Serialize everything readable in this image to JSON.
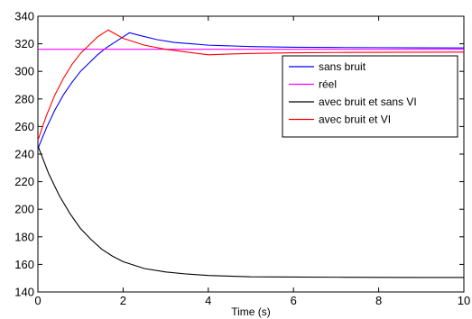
{
  "chart_data": {
    "type": "line",
    "title": "",
    "xlabel": "Time (s)",
    "ylabel": "",
    "xlim": [
      0,
      10
    ],
    "ylim": [
      140,
      340
    ],
    "xticks": [
      0,
      2,
      4,
      6,
      8,
      10
    ],
    "yticks": [
      140,
      160,
      180,
      200,
      220,
      240,
      260,
      280,
      300,
      320,
      340
    ],
    "grid": false,
    "legend_position": "right",
    "series": [
      {
        "name": "sans bruit",
        "color": "#0000ff",
        "x": [
          0,
          0.2,
          0.4,
          0.6,
          0.8,
          1.0,
          1.2,
          1.4,
          1.6,
          1.8,
          2.0,
          2.15,
          2.4,
          2.8,
          3.2,
          3.6,
          4.0,
          5.0,
          6.0,
          7.0,
          8.0,
          9.0,
          10.0
        ],
        "y": [
          244,
          259,
          272,
          283,
          292,
          300,
          306,
          312,
          317,
          321,
          325,
          328,
          326,
          323,
          321,
          320,
          319,
          318,
          317.5,
          317.3,
          317.2,
          317.1,
          317
        ]
      },
      {
        "name": "réel",
        "color": "#ff00ff",
        "x": [
          0,
          10
        ],
        "y": [
          316,
          316
        ]
      },
      {
        "name": "avec bruit et sans VI",
        "color": "#000000",
        "x": [
          0,
          0.25,
          0.5,
          0.75,
          1.0,
          1.25,
          1.5,
          1.75,
          2.0,
          2.5,
          3.0,
          3.5,
          4.0,
          4.5,
          5.0,
          6.0,
          7.0,
          8.0,
          9.0,
          10.0
        ],
        "y": [
          246,
          226,
          210,
          197,
          186,
          178,
          171,
          166,
          162,
          157,
          154.5,
          153,
          152,
          151.5,
          151,
          150.8,
          150.7,
          150.6,
          150.5,
          150.5
        ]
      },
      {
        "name": "avec bruit et VI",
        "color": "#ff0000",
        "x": [
          0,
          0.2,
          0.4,
          0.6,
          0.8,
          1.0,
          1.2,
          1.4,
          1.65,
          2.0,
          2.5,
          3.0,
          3.5,
          4.0,
          4.5,
          5.0,
          6.0,
          7.0,
          8.0,
          9.0,
          10.0
        ],
        "y": [
          250,
          268,
          283,
          295,
          305,
          313,
          319,
          325,
          330,
          324,
          319,
          316,
          314,
          312,
          312.6,
          313,
          313.5,
          313.7,
          313.8,
          313.9,
          314
        ]
      }
    ]
  }
}
